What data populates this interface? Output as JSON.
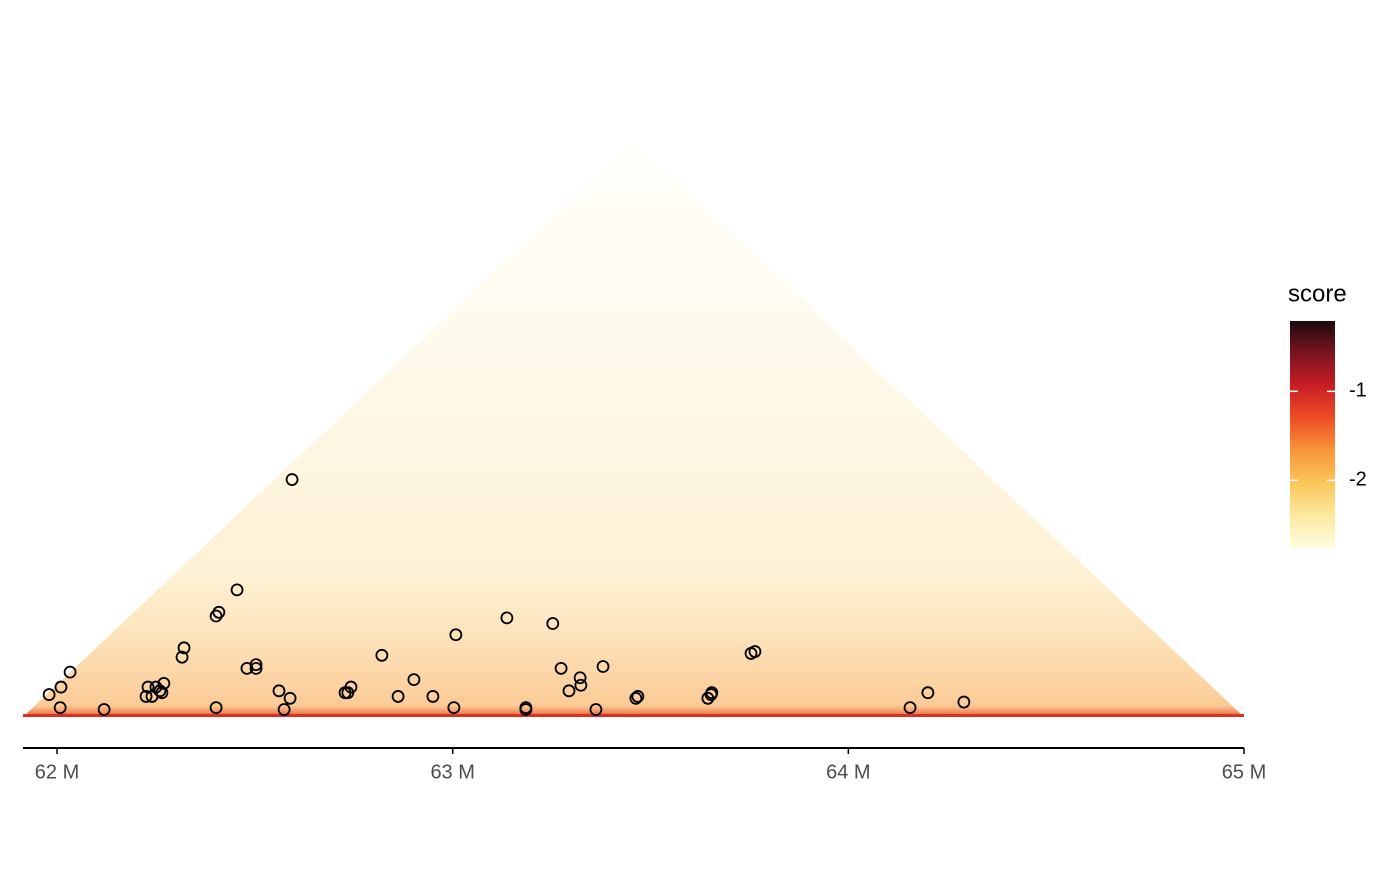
{
  "chart_data": {
    "type": "scatter",
    "x_label_unit_ticks": null,
    "xlim": [
      61.914,
      65.0
    ],
    "ylim": [
      0,
      3.086
    ],
    "xticks": [
      {
        "value": 62,
        "label": "62 M"
      },
      {
        "value": 63,
        "label": "63 M"
      },
      {
        "value": 64,
        "label": "64 M"
      },
      {
        "value": 65,
        "label": "65 M"
      }
    ],
    "series": [
      {
        "color": "#000000",
        "x": [
          62.594,
          62.455,
          62.402,
          62.409,
          62.321,
          62.316,
          62.033,
          62.01,
          61.98,
          62.008,
          62.119,
          62.23,
          62.25,
          62.27,
          62.26,
          62.265,
          62.225,
          62.24,
          62.402,
          62.48,
          62.503,
          62.503,
          62.561,
          62.589,
          62.574,
          62.728,
          62.743,
          62.735,
          62.821,
          62.862,
          62.902,
          62.95,
          63.003,
          63.008,
          63.137,
          63.253,
          63.274,
          63.322,
          63.324,
          63.294,
          63.38,
          63.185,
          63.185,
          63.362,
          63.463,
          63.468,
          63.645,
          63.653,
          63.655,
          63.754,
          63.764,
          64.156,
          64.201,
          64.292
        ],
        "values": [
          1.27,
          0.68,
          0.54,
          0.56,
          0.37,
          0.32,
          0.24,
          0.16,
          0.12,
          0.05,
          0.04,
          0.16,
          0.16,
          0.18,
          0.14,
          0.13,
          0.11,
          0.11,
          0.05,
          0.26,
          0.28,
          0.26,
          0.14,
          0.1,
          0.04,
          0.13,
          0.16,
          0.13,
          0.33,
          0.11,
          0.2,
          0.11,
          0.05,
          0.44,
          0.53,
          0.5,
          0.26,
          0.21,
          0.17,
          0.14,
          0.27,
          0.05,
          0.04,
          0.04,
          0.1,
          0.11,
          0.1,
          0.12,
          0.13,
          0.34,
          0.35,
          0.05,
          0.13,
          0.08
        ]
      }
    ],
    "colorbar": {
      "title": "score",
      "lim": [
        -2.76,
        -0.21
      ],
      "ticks": [
        -1,
        -2
      ],
      "colors": [
        "#fffce0",
        "#fde9a0",
        "#fbc65a",
        "#f7963a",
        "#ee4d25",
        "#c81e24",
        "#7d1320",
        "#1a0a0c"
      ]
    }
  }
}
